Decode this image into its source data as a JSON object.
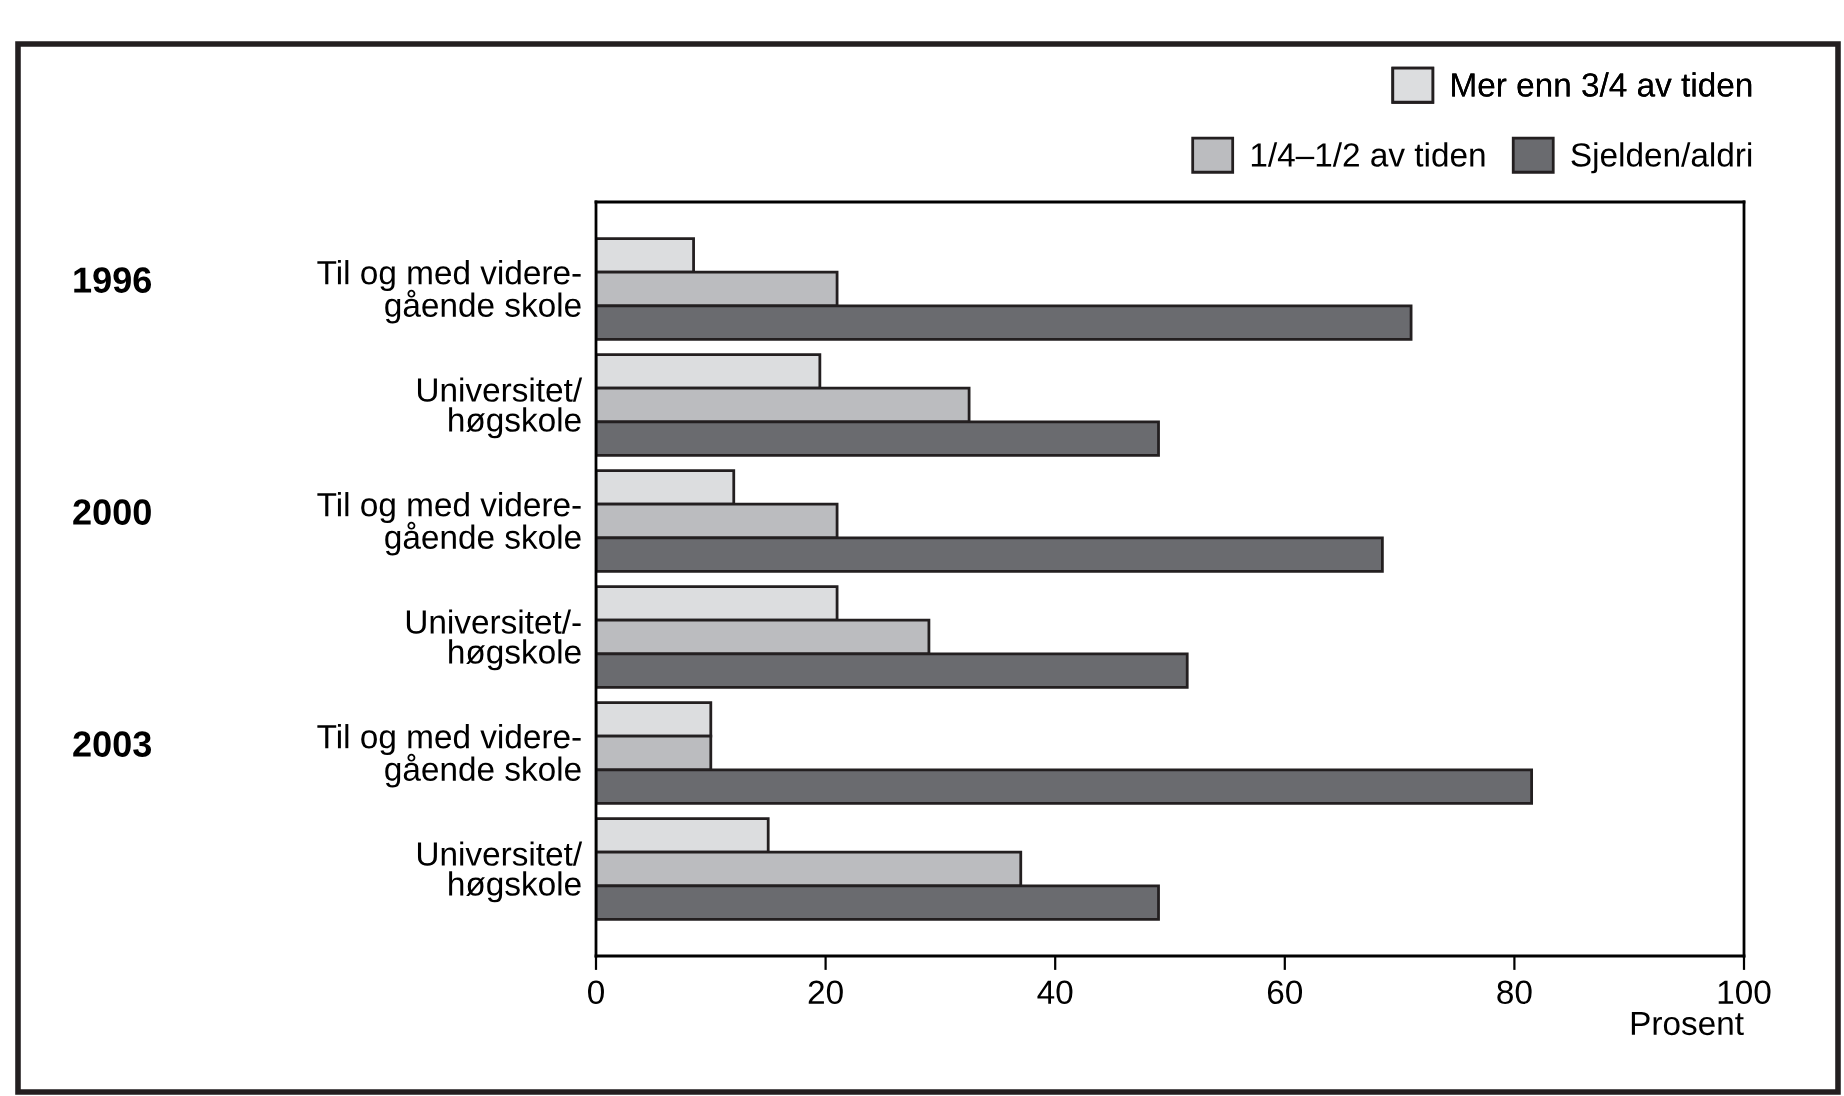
{
  "chart_data": {
    "type": "bar",
    "orientation": "horizontal",
    "categories": [
      "Til og med videre-\ngående skole",
      "Universitet/\nhøgskole",
      "Til og med videre-\ngående skole",
      "Universitet/-\nhøgskole",
      "Til og med videre-\ngående skole",
      "Universitet/\nhøgskole"
    ],
    "series": [
      {
        "name": "Mer enn 3/4 av tiden",
        "color": "#dcdddf",
        "values": [
          8.5,
          19.5,
          12,
          21,
          10,
          15
        ]
      },
      {
        "name": "1/4–1/2 av tiden",
        "color": "#bbbcbf",
        "values": [
          21,
          32.5,
          21,
          29,
          10,
          37
        ]
      },
      {
        "name": "Sjelden/aldri",
        "color": "#6a6b6f",
        "values": [
          71,
          49,
          68.5,
          51.5,
          81.5,
          49
        ]
      }
    ],
    "annotations": [
      "1996",
      "2000",
      "2003"
    ],
    "xlabel": "Prosent",
    "xlim": [
      0,
      100
    ],
    "xticks": [
      0,
      20,
      40,
      60,
      80,
      100
    ],
    "grid": false,
    "legend": "top right"
  }
}
